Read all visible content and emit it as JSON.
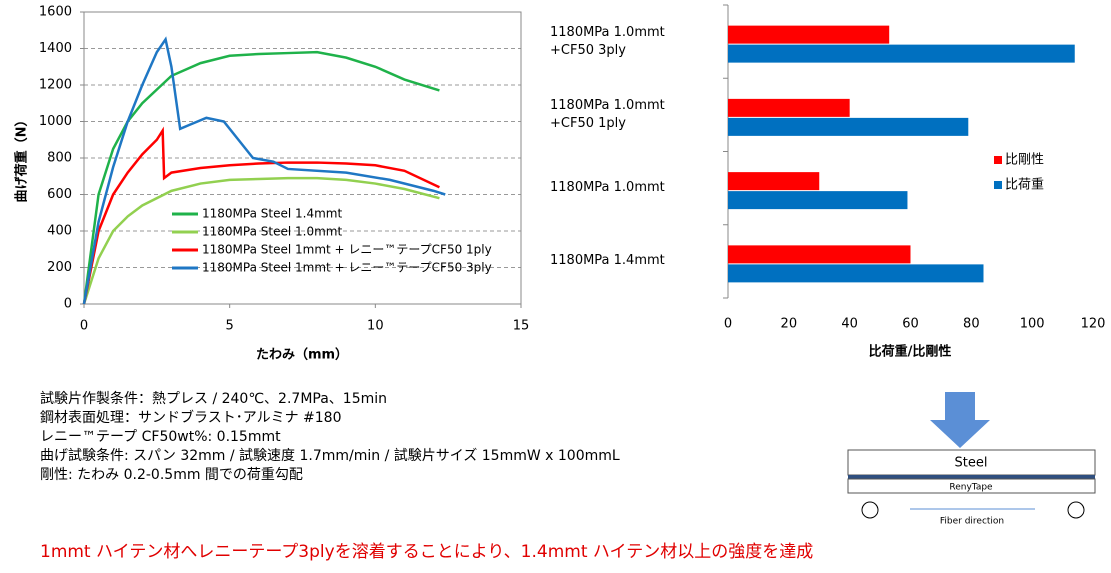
{
  "chart_data": [
    {
      "type": "line",
      "xlabel": "たわみ（mm）",
      "ylabel": "曲げ荷重（N）",
      "xlim": [
        0,
        15
      ],
      "xticks": [
        0,
        5,
        10,
        15
      ],
      "ylim": [
        0,
        1600
      ],
      "yticks": [
        0,
        200,
        400,
        600,
        800,
        1000,
        1200,
        1400,
        1600
      ],
      "grid": true,
      "legend": "bottom",
      "series": [
        {
          "name": "1180MPa Steel 1.4mmt",
          "color": "#1fb24a",
          "x": [
            0,
            0.5,
            1,
            1.5,
            2,
            3,
            4,
            5,
            6,
            7,
            8,
            9,
            10,
            11,
            12.2
          ],
          "values": [
            0,
            600,
            850,
            1000,
            1100,
            1250,
            1320,
            1360,
            1370,
            1375,
            1380,
            1350,
            1300,
            1230,
            1170
          ]
        },
        {
          "name": "1180MPa Steel 1.0mmt",
          "color": "#92d050",
          "x": [
            0,
            0.5,
            1,
            1.5,
            2,
            3,
            4,
            5,
            6,
            7,
            8,
            9,
            10,
            11,
            12.2
          ],
          "values": [
            0,
            250,
            400,
            480,
            540,
            620,
            660,
            680,
            685,
            690,
            690,
            680,
            660,
            630,
            580
          ]
        },
        {
          "name": "1180MPa Steel 1mmt + レニー™テープCF50 1ply",
          "color": "#ff0000",
          "x": [
            0,
            0.5,
            1,
            1.5,
            2,
            2.5,
            2.7,
            2.75,
            3,
            4,
            5,
            6,
            7,
            8,
            9,
            10,
            11,
            12.2
          ],
          "values": [
            0,
            400,
            600,
            720,
            820,
            900,
            950,
            690,
            720,
            745,
            760,
            770,
            775,
            775,
            770,
            760,
            730,
            640
          ]
        },
        {
          "name": "1180MPa Steel 1mmt + レニー™テープCF50 3ply",
          "color": "#1f77c4",
          "x": [
            0,
            0.5,
            1,
            1.5,
            2,
            2.5,
            2.8,
            3,
            3.3,
            3.6,
            4.2,
            4.8,
            5.3,
            5.8,
            6.5,
            7,
            9,
            10.5,
            12,
            12.4
          ],
          "values": [
            0,
            450,
            750,
            1000,
            1200,
            1380,
            1450,
            1300,
            960,
            980,
            1020,
            1000,
            900,
            800,
            780,
            740,
            720,
            680,
            620,
            600
          ]
        }
      ]
    },
    {
      "type": "hbar",
      "xlabel": "比荷重/比剛性",
      "xlim": [
        0,
        120
      ],
      "xticks": [
        0,
        20,
        40,
        60,
        80,
        100,
        120
      ],
      "legend": "right",
      "categories": [
        "1180MPa 1.0mmt\n+CF50 3ply",
        "1180MPa 1.0mmt\n+CF50 1ply",
        "1180MPa 1.0mmt",
        "1180MPa 1.4mmt"
      ],
      "series": [
        {
          "name": "比剛性",
          "color": "#ff0000",
          "values": [
            53,
            40,
            30,
            60
          ]
        },
        {
          "name": "比荷重",
          "color": "#0070c0",
          "values": [
            114,
            79,
            59,
            84
          ]
        }
      ]
    }
  ],
  "notes": [
    "試験片作製条件：熱プレス / 240℃、2.7MPa、15min",
    "鋼材表面処理：サンドブラスト･アルミナ #180",
    "レニー™テープ CF50wt%: 0.15mmt",
    "曲げ試験条件: スパン 32mm / 試験速度 1.7mm/min / 試験片サイズ 15mmW x 100mmL",
    "剛性: たわみ 0.2-0.5mm 間での荷重勾配"
  ],
  "diagram": {
    "steel": "Steel",
    "tape": "RenyTape",
    "fiber": "Fiber direction"
  },
  "conclusion": "1mmt ハイテン材へレニーテープ3plyを溶着することにより、1.4mmt ハイテン材以上の強度を達成"
}
